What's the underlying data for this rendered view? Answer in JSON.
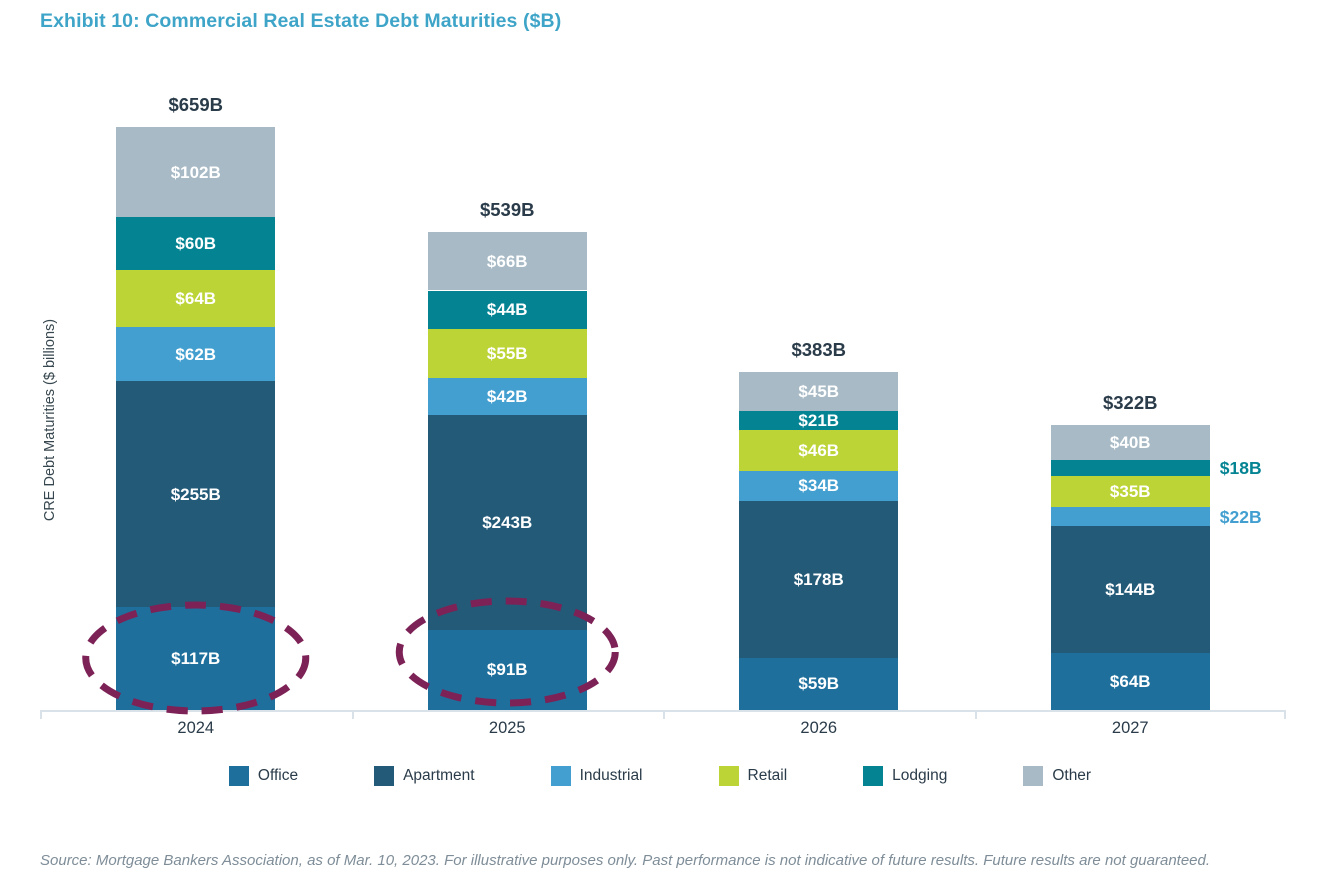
{
  "title": "Exhibit 10: Commercial Real Estate Debt Maturities ($B)",
  "y_axis_label": "CRE Debt Maturities ($ billions)",
  "source": "Source: Mortgage Bankers Association, as of Mar. 10, 2023. For illustrative purposes only. Past performance is not indicative of future results. Future results are not guaranteed.",
  "colors": {
    "title": "#3fa5c8",
    "text_dark": "#2a3b49",
    "axis_line": "#d9e1e9",
    "source_text": "#7e8d98",
    "highlight_ellipse": "#7d2257"
  },
  "chart_data": {
    "type": "bar",
    "stacked": true,
    "title": "Exhibit 10: Commercial Real Estate Debt Maturities ($B)",
    "xlabel": "",
    "ylabel": "CRE Debt Maturities ($ billions)",
    "ylim": [
      0,
      659
    ],
    "grid": false,
    "legend_position": "bottom",
    "categories": [
      "2024",
      "2025",
      "2026",
      "2027"
    ],
    "totals": [
      659,
      539,
      383,
      322
    ],
    "total_labels": [
      "$659B",
      "$539B",
      "$383B",
      "$322B"
    ],
    "series": [
      {
        "name": "Office",
        "color": "#1e6f9c",
        "values": [
          117,
          91,
          59,
          64
        ],
        "value_labels": [
          "$117B",
          "$91B",
          "$59B",
          "$64B"
        ]
      },
      {
        "name": "Apartment",
        "color": "#235a78",
        "values": [
          255,
          243,
          178,
          144
        ],
        "value_labels": [
          "$255B",
          "$243B",
          "$178B",
          "$144B"
        ]
      },
      {
        "name": "Industrial",
        "color": "#429fd0",
        "values": [
          62,
          42,
          34,
          22
        ],
        "value_labels": [
          "$62B",
          "$42B",
          "$34B",
          "$22B"
        ]
      },
      {
        "name": "Retail",
        "color": "#bcd435",
        "values": [
          64,
          55,
          46,
          35
        ],
        "value_labels": [
          "$64B",
          "$55B",
          "$46B",
          "$35B"
        ]
      },
      {
        "name": "Lodging",
        "color": "#048493",
        "values": [
          60,
          44,
          21,
          18
        ],
        "value_labels": [
          "$60B",
          "$44B",
          "$21B",
          "$18B"
        ]
      },
      {
        "name": "Other",
        "color": "#a7bac6",
        "values": [
          102,
          66,
          45,
          40
        ],
        "value_labels": [
          "$102B",
          "$66B",
          "$45B",
          "$40B"
        ]
      }
    ],
    "outside_labels": [
      {
        "category": "2027",
        "series": "Lodging",
        "label": "$18B"
      },
      {
        "category": "2027",
        "series": "Industrial",
        "label": "$22B"
      }
    ],
    "highlight_ellipses": [
      {
        "category": "2024",
        "series": "Office",
        "label": "$117B"
      },
      {
        "category": "2025",
        "series": "Office",
        "label": "$91B"
      }
    ],
    "legend": [
      "Office",
      "Apartment",
      "Industrial",
      "Retail",
      "Lodging",
      "Other"
    ]
  }
}
